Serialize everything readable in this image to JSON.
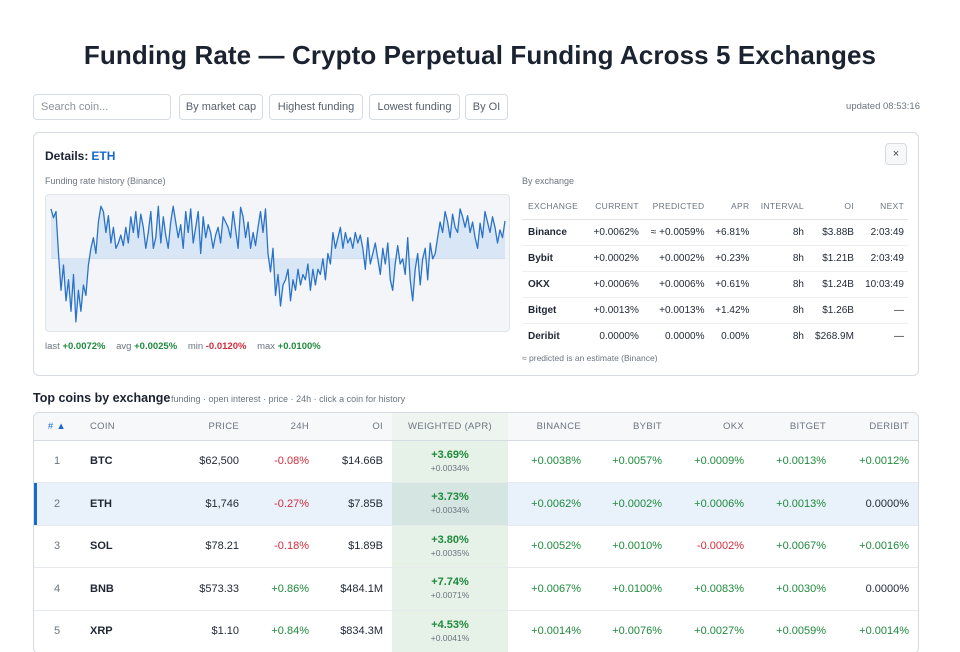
{
  "page": {
    "title": "Funding Rate — Crypto Perpetual Funding Across 5 Exchanges"
  },
  "toolbar": {
    "search_placeholder": "Search coin...",
    "filters": [
      "By market cap",
      "Highest funding",
      "Lowest funding",
      "By OI"
    ],
    "updated": "updated 08:53:16"
  },
  "details": {
    "title_prefix": "Details:",
    "coin": "ETH",
    "close_label": "×",
    "history_label": "Funding rate history (Binance)",
    "stats": [
      {
        "label": "last",
        "value": "+0.0072%",
        "tone": "pos"
      },
      {
        "label": "avg",
        "value": "+0.0025%",
        "tone": "pos"
      },
      {
        "label": "min",
        "value": "-0.0120%",
        "tone": "neg"
      },
      {
        "label": "max",
        "value": "+0.0100%",
        "tone": "pos"
      }
    ],
    "by_exchange_label": "By exchange",
    "columns": [
      "EXCHANGE",
      "CURRENT",
      "PREDICTED",
      "APR",
      "INTERVAL",
      "OI",
      "NEXT"
    ],
    "rows": [
      {
        "exchange": "Binance",
        "current": "+0.0062%",
        "predicted": "≈ +0.0059%",
        "apr": "+6.81%",
        "interval": "8h",
        "oi": "$3.88B",
        "next": "2:03:49",
        "tone": "pos"
      },
      {
        "exchange": "Bybit",
        "current": "+0.0002%",
        "predicted": "+0.0002%",
        "apr": "+0.23%",
        "interval": "8h",
        "oi": "$1.21B",
        "next": "2:03:49",
        "tone": "pos"
      },
      {
        "exchange": "OKX",
        "current": "+0.0006%",
        "predicted": "+0.0006%",
        "apr": "+0.61%",
        "interval": "8h",
        "oi": "$1.24B",
        "next": "10:03:49",
        "tone": "pos"
      },
      {
        "exchange": "Bitget",
        "current": "+0.0013%",
        "predicted": "+0.0013%",
        "apr": "+1.42%",
        "interval": "8h",
        "oi": "$1.26B",
        "next": "—",
        "tone": "pos"
      },
      {
        "exchange": "Deribit",
        "current": "0.0000%",
        "predicted": "0.0000%",
        "apr": "0.00%",
        "interval": "8h",
        "oi": "$268.9M",
        "next": "—",
        "tone": "neu"
      }
    ],
    "footnote": "≈ predicted is an estimate (Binance)"
  },
  "chart_data": {
    "type": "line",
    "title": "Funding rate history (Binance)",
    "unit": "%",
    "ylim": [
      -0.013,
      0.011
    ],
    "grid": false,
    "values": [
      0.0095,
      0.0078,
      0.009,
      0.001,
      -0.006,
      -0.0012,
      -0.008,
      -0.004,
      -0.01,
      -0.003,
      -0.012,
      -0.006,
      -0.01,
      -0.005,
      -0.007,
      -0.0012,
      0.002,
      0.004,
      0.001,
      0.007,
      0.01,
      0.009,
      0.005,
      0.0082,
      0.003,
      0.006,
      0.002,
      0.003,
      0.0045,
      0.0025,
      0.006,
      0.003,
      0.008,
      0.005,
      0.009,
      0.004,
      0.0085,
      0.006,
      0.002,
      0.005,
      0.009,
      0.002,
      0.004,
      0.01,
      0.003,
      0.008,
      0.0045,
      0.002,
      0.007,
      0.01,
      0.007,
      0.004,
      0.0065,
      0.002,
      0.009,
      0.005,
      0.0095,
      0.003,
      0.006,
      0.009,
      0.001,
      0.008,
      0.004,
      0.0065,
      0.005,
      0.002,
      0.0045,
      0.006,
      0.003,
      0.008,
      0.007,
      0.006,
      0.004,
      0.009,
      0.0055,
      0.002,
      0.0098,
      0.008,
      0.004,
      0.007,
      0.002,
      0.005,
      0.0025,
      0.006,
      0.009,
      0.005,
      0.0095,
      0.001,
      -0.0025,
      0.002,
      -0.007,
      -0.003,
      -0.009,
      -0.005,
      -0.004,
      -0.002,
      -0.008,
      -0.004,
      -0.006,
      -0.002,
      -0.005,
      -0.003,
      -0.004,
      -0.001,
      -0.006,
      -0.002,
      -0.005,
      -0.002,
      -0.003,
      0.0,
      -0.004,
      0.001,
      -0.001,
      0.005,
      0.002,
      0.004,
      0.006,
      0.002,
      0.005,
      0.003,
      0.004,
      0.002,
      0.005,
      0.003,
      0.0045,
      0.002,
      -0.002,
      0.004,
      -0.001,
      0.001,
      0.003,
      0.0,
      -0.003,
      0.002,
      -0.001,
      0.003,
      -0.004,
      -0.006,
      -0.001,
      0.0025,
      -0.001,
      0.0,
      -0.003,
      0.004,
      -0.004,
      -0.008,
      -0.002,
      0.001,
      -0.005,
      0.0,
      0.002,
      -0.004,
      0.003,
      0.0,
      0.001,
      0.004,
      0.007,
      0.005,
      0.009,
      0.007,
      0.004,
      0.0085,
      0.006,
      0.005,
      0.0095,
      0.008,
      0.006,
      0.0082,
      0.005,
      0.007,
      0.004,
      0.002,
      0.0068,
      0.004,
      0.009,
      0.007,
      0.005,
      0.008,
      0.006,
      0.003,
      0.0055,
      0.004,
      0.0072
    ]
  },
  "section": {
    "title": "Top coins by exchange",
    "subtitle": "funding · open interest · price · 24h · click a coin for history"
  },
  "table": {
    "columns": {
      "rank": "#",
      "sort_arrow": "▲",
      "coin": "COIN",
      "price": "PRICE",
      "h24": "24H",
      "oi": "OI",
      "weighted": "WEIGHTED (APR)",
      "binance": "BINANCE",
      "bybit": "BYBIT",
      "okx": "OKX",
      "bitget": "BITGET",
      "deribit": "DERIBIT"
    },
    "rows": [
      {
        "rank": "1",
        "coin": "BTC",
        "price": "$62,500",
        "h24": "-0.08%",
        "h24_tone": "neg",
        "oi": "$14.66B",
        "w_apr": "+3.69%",
        "w_rate": "+0.0034%",
        "binance": "+0.0038%",
        "binance_tone": "pos",
        "bybit": "+0.0057%",
        "bybit_tone": "pos",
        "okx": "+0.0009%",
        "okx_tone": "pos",
        "bitget": "+0.0013%",
        "bitget_tone": "pos",
        "deribit": "+0.0012%",
        "deribit_tone": "pos",
        "selected": false
      },
      {
        "rank": "2",
        "coin": "ETH",
        "price": "$1,746",
        "h24": "-0.27%",
        "h24_tone": "neg",
        "oi": "$7.85B",
        "w_apr": "+3.73%",
        "w_rate": "+0.0034%",
        "binance": "+0.0062%",
        "binance_tone": "pos",
        "bybit": "+0.0002%",
        "bybit_tone": "pos",
        "okx": "+0.0006%",
        "okx_tone": "pos",
        "bitget": "+0.0013%",
        "bitget_tone": "pos",
        "deribit": "0.0000%",
        "deribit_tone": "neu",
        "selected": true
      },
      {
        "rank": "3",
        "coin": "SOL",
        "price": "$78.21",
        "h24": "-0.18%",
        "h24_tone": "neg",
        "oi": "$1.89B",
        "w_apr": "+3.80%",
        "w_rate": "+0.0035%",
        "binance": "+0.0052%",
        "binance_tone": "pos",
        "bybit": "+0.0010%",
        "bybit_tone": "pos",
        "okx": "-0.0002%",
        "okx_tone": "neg",
        "bitget": "+0.0067%",
        "bitget_tone": "pos",
        "deribit": "+0.0016%",
        "deribit_tone": "pos",
        "selected": false
      },
      {
        "rank": "4",
        "coin": "BNB",
        "price": "$573.33",
        "h24": "+0.86%",
        "h24_tone": "pos",
        "oi": "$484.1M",
        "w_apr": "+7.74%",
        "w_rate": "+0.0071%",
        "binance": "+0.0067%",
        "binance_tone": "pos",
        "bybit": "+0.0100%",
        "bybit_tone": "pos",
        "okx": "+0.0083%",
        "okx_tone": "pos",
        "bitget": "+0.0030%",
        "bitget_tone": "pos",
        "deribit": "0.0000%",
        "deribit_tone": "neu",
        "selected": false
      },
      {
        "rank": "5",
        "coin": "XRP",
        "price": "$1.10",
        "h24": "+0.84%",
        "h24_tone": "pos",
        "oi": "$834.3M",
        "w_apr": "+4.53%",
        "w_rate": "+0.0041%",
        "binance": "+0.0014%",
        "binance_tone": "pos",
        "bybit": "+0.0076%",
        "bybit_tone": "pos",
        "okx": "+0.0027%",
        "okx_tone": "pos",
        "bitget": "+0.0059%",
        "bitget_tone": "pos",
        "deribit": "+0.0014%",
        "deribit_tone": "pos",
        "selected": false
      }
    ]
  },
  "colors": {
    "positive": "#1e8a3c",
    "negative": "#d12c3c",
    "accent": "#1c6ac7",
    "line": "#2b73c8",
    "area": "#d3e3f5"
  }
}
